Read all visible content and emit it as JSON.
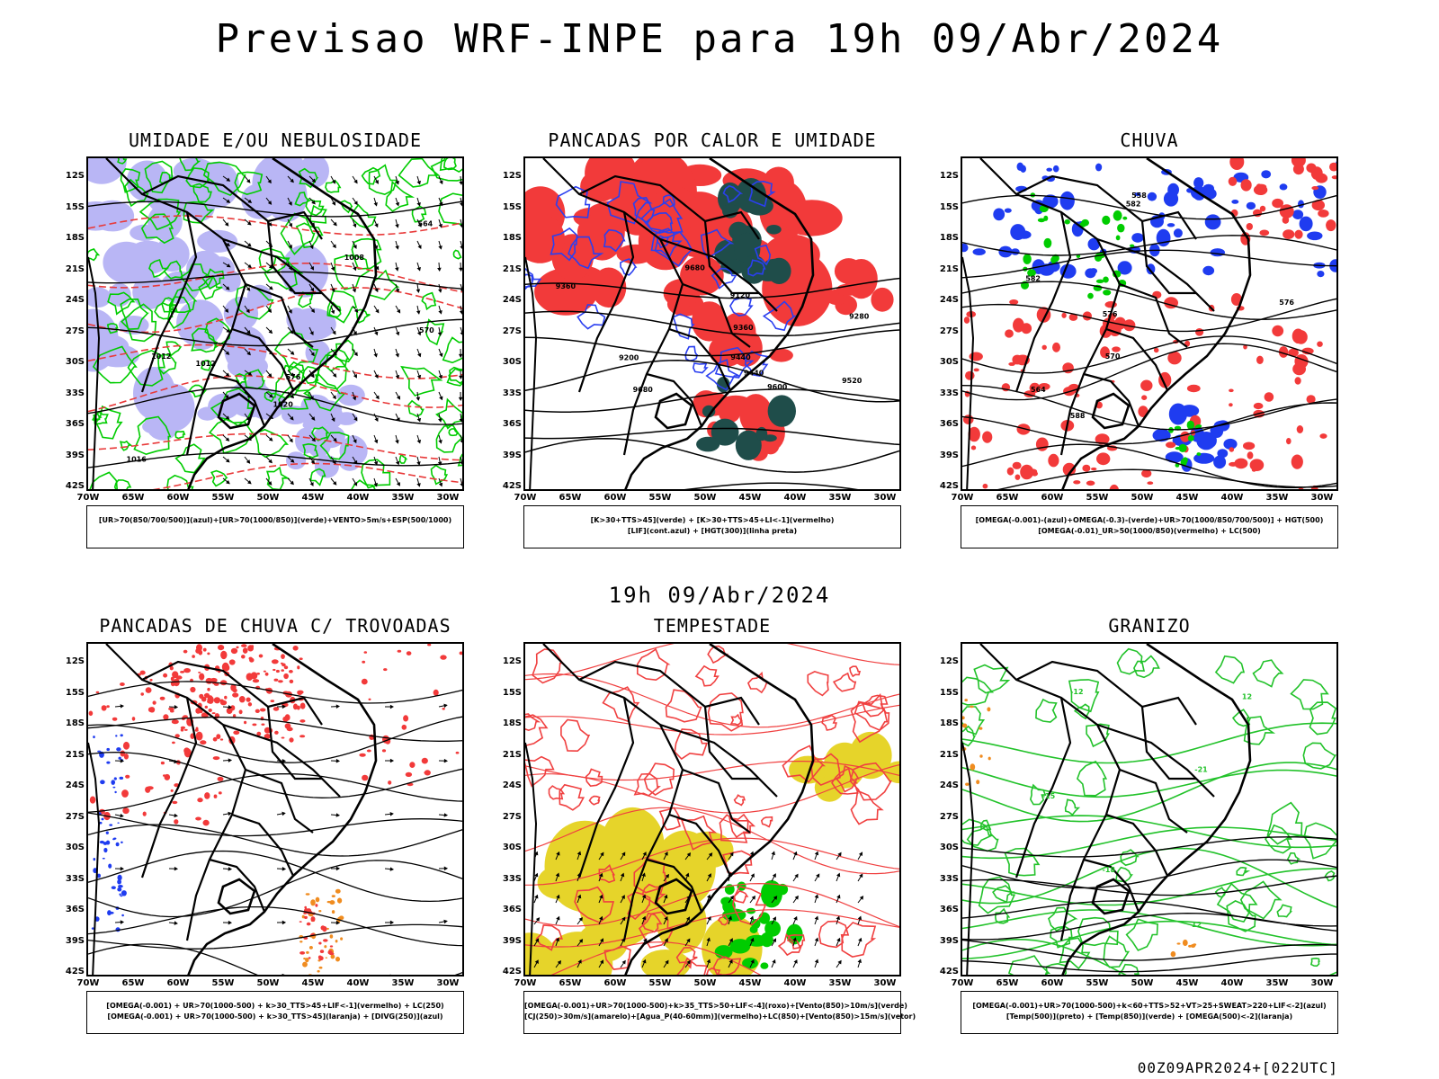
{
  "header": {
    "title": "Previsao WRF-INPE  para 19h 09/Abr/2024"
  },
  "middle": {
    "title": "19h 09/Abr/2024"
  },
  "footer": {
    "run": "00Z09APR2024+[022UTC]"
  },
  "axes": {
    "lat_labels": [
      "12S",
      "15S",
      "18S",
      "21S",
      "24S",
      "27S",
      "30S",
      "33S",
      "36S",
      "39S",
      "42S"
    ],
    "lon_labels": [
      "70W",
      "65W",
      "60W",
      "55W",
      "50W",
      "45W",
      "40W",
      "35W",
      "30W"
    ]
  },
  "panels": [
    {
      "title": "UMIDADE E/OU NEBULOSIDADE",
      "legend": [
        "[UR>70(850/700/500)](azul)+[UR>70(1000/850)](verde)+VENTO>5m/s+ESP(500/1000)"
      ],
      "contour_labels": [
        "1012",
        "1008",
        "1016",
        "1020",
        "1012",
        "576",
        "570",
        "564"
      ],
      "colors": {
        "fill1": "#b9b6f5",
        "fill2": "#00cc00",
        "contour": "#e83a3a"
      }
    },
    {
      "title": "PANCADAS POR CALOR E UMIDADE",
      "legend": [
        "[K>30+TTS>45](verde) + [K>30+TTS>45+LI<-1](vermelho)",
        "[LIF](cont.azul) + [HGT(300)](linha preta)"
      ],
      "contour_labels": [
        "9680",
        "9680",
        "9600",
        "9520",
        "9440",
        "9360",
        "9280",
        "9200",
        "9120",
        "9440",
        "9360"
      ],
      "colors": {
        "fill1": "#f23a3a",
        "fill2": "#1f4d4a",
        "contour": "#2a3ff0"
      }
    },
    {
      "title": "CHUVA",
      "legend": [
        "[OMEGA(-0.001)-(azul)+OMEGA(-0.3)-(verde)+UR>70(1000/850/700/500)] + HGT(500)",
        "[OMEGA(-0.01)_UR>50(1000/850)(vermelho) + LC(500)"
      ],
      "contour_labels": [
        "588",
        "582",
        "576",
        "570",
        "564",
        "558",
        "576",
        "582"
      ],
      "colors": {
        "fill1": "#1f3cf0",
        "fill2": "#f23a3a",
        "contour": "#000000"
      }
    },
    {
      "title": "PANCADAS DE CHUVA C/ TROVOADAS",
      "legend": [
        "[OMEGA(-0.001) + UR>70(1000-500) + k>30_TTS>45+LIF<-1](vermelho) + LC(250)",
        "[OMEGA(-0.001) + UR>70(1000-500) + k>30_TTS>45](laranja) + [DIVG(250)](azul)"
      ],
      "contour_labels": [],
      "colors": {
        "fill1": "#f23a3a",
        "fill2": "#f08c20",
        "contour": "#1f3cf0"
      }
    },
    {
      "title": "TEMPESTADE",
      "legend": [
        "[OMEGA(-0.001)+UR>70(1000-500)+k>35_TTS>50+LIF<-4](roxo)+[Vento(850)>10m/s](verde)",
        "[CJ(250)>30m/s](amarelo)+[Agua_P(40-60mm)](vermelho)+LC(850)+[Vento(850)>15m/s](vetor)"
      ],
      "contour_labels": [],
      "colors": {
        "fill1": "#e6d42a",
        "fill2": "#00cc00",
        "contour": "#f04040"
      }
    },
    {
      "title": "GRANIZO",
      "legend": [
        "[OMEGA(-0.001)+UR>70(1000-500)+k<60+TTS>52+VT>25+SWEAT>220+LIF<-2](azul)",
        "[Temp(500)](preto) + [Temp(850)](verde) + [OMEGA(500)<-2](laranja)"
      ],
      "contour_labels": [
        "-12",
        "-15",
        "-18",
        "-21",
        "12",
        "12"
      ],
      "colors": {
        "fill1": "#f08c20",
        "fill2": "#22c22a",
        "contour": "#22c22a"
      }
    }
  ]
}
